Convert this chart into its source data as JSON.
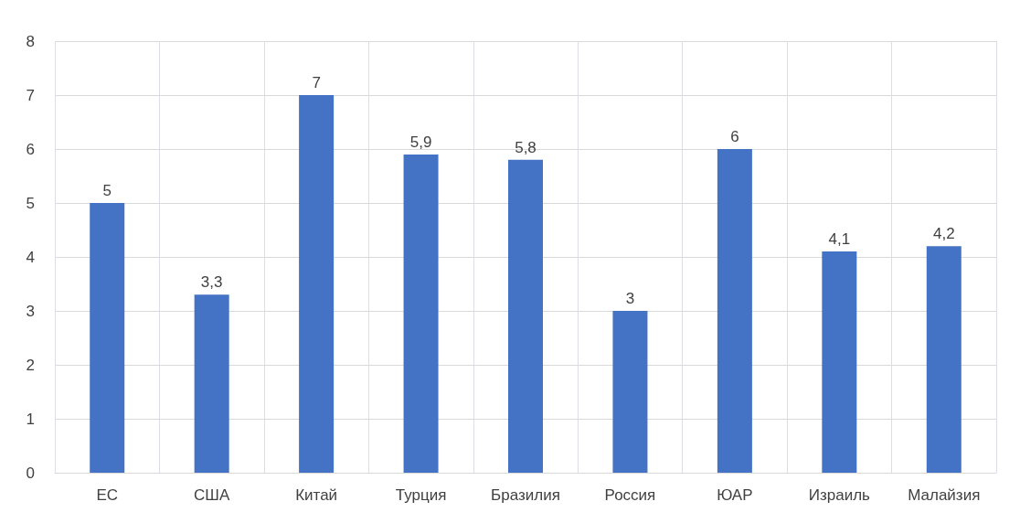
{
  "chart_data": {
    "type": "bar",
    "categories": [
      "ЕС",
      "США",
      "Китай",
      "Турция",
      "Бразилия",
      "Россия",
      "ЮАР",
      "Израиль",
      "Малайзия"
    ],
    "values": [
      5,
      3.3,
      7,
      5.9,
      5.8,
      3,
      6,
      4.1,
      4.2
    ],
    "value_labels": [
      "5",
      "3,3",
      "7",
      "5,9",
      "5,8",
      "3",
      "6",
      "4,1",
      "4,2"
    ],
    "color": "#4472c4",
    "ylim": [
      0,
      8
    ],
    "yticks": [
      0,
      1,
      2,
      3,
      4,
      5,
      6,
      7,
      8
    ],
    "grid": true
  }
}
